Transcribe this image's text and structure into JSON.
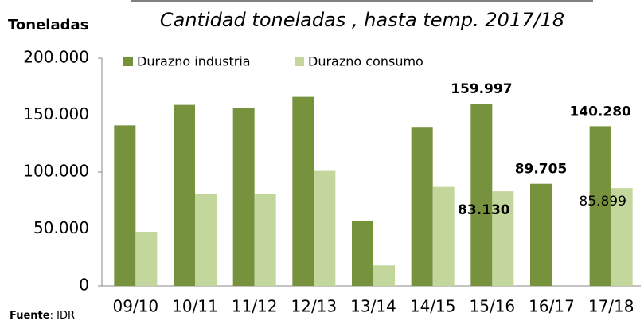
{
  "chart_data": {
    "type": "bar",
    "title": "Cantidad toneladas , hasta temp. 2017/18",
    "y_label": "Toneladas",
    "source_label": "Fuente",
    "source_text": ": IDR",
    "categories": [
      "09/10",
      "10/11",
      "11/12",
      "12/13",
      "13/14",
      "14/15",
      "15/16",
      "16/17",
      "17/18"
    ],
    "series": [
      {
        "name": "Durazno industria",
        "color": "#76923c",
        "values": [
          141000,
          159000,
          156000,
          166000,
          57000,
          139000,
          159997,
          89705,
          140280
        ],
        "value_labels": [
          null,
          null,
          null,
          null,
          null,
          null,
          "159.997",
          "89.705",
          "140.280"
        ]
      },
      {
        "name": "Durazno consumo",
        "color": "#c3d69b",
        "values": [
          47500,
          81000,
          81000,
          101000,
          18000,
          87000,
          83130,
          null,
          85899
        ],
        "value_labels": [
          null,
          null,
          null,
          null,
          null,
          null,
          "83.130",
          null,
          "85.899"
        ]
      }
    ],
    "ylim": [
      0,
      200000
    ],
    "yticks": [
      0,
      {
        "value": 50000,
        "label": "50.000"
      },
      {
        "value": 100000,
        "label": "100.000"
      },
      {
        "value": 150000,
        "label": "150.000"
      },
      {
        "value": 200000,
        "label": "200.000"
      }
    ],
    "legend": "top"
  }
}
